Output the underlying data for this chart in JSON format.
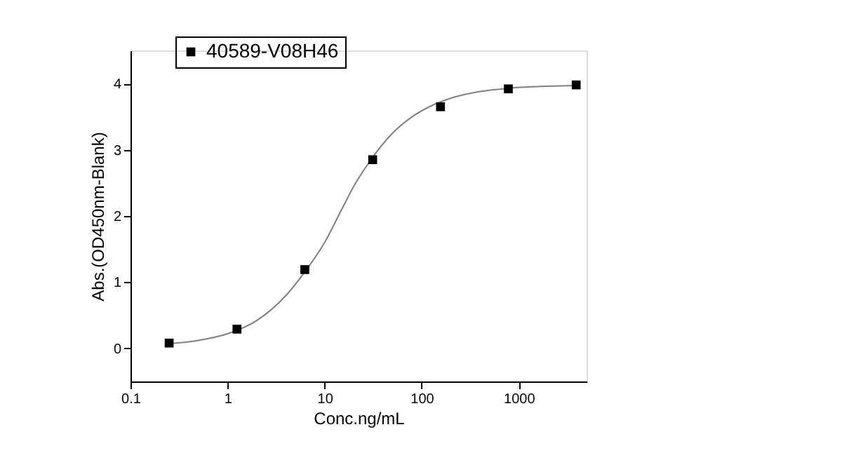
{
  "chart_data": {
    "type": "scatter",
    "xlabel": "Conc.ng/mL",
    "ylabel": "Abs.(OD450nm-Blank)",
    "log": "x",
    "grid": false,
    "legend": "top left",
    "xlim": [
      0.1,
      5000
    ],
    "xticks": [
      0.1,
      1,
      10,
      100,
      1000
    ],
    "ylim": [
      -0.5,
      4.5
    ],
    "yticks": [
      0,
      1,
      2,
      3,
      4
    ],
    "series": [
      {
        "name": "40589-V08H46",
        "color": "#000000",
        "marker": "square",
        "x": [
          0.25,
          1.25,
          6.25,
          31.25,
          156.25,
          781.25,
          3906.25
        ],
        "values": [
          0.08,
          0.29,
          1.19,
          2.85,
          3.65,
          3.92,
          3.98
        ]
      },
      {
        "color": "#808080",
        "type": "line",
        "marker": "none",
        "line_style": "solid",
        "x": [
          0.25,
          0.5,
          1,
          2,
          4,
          6,
          10,
          15,
          20,
          30,
          50,
          80,
          120,
          200,
          400,
          800,
          2000,
          3906.25
        ],
        "values": [
          0.07,
          0.12,
          0.22,
          0.42,
          0.8,
          1.12,
          1.6,
          2.1,
          2.45,
          2.85,
          3.25,
          3.5,
          3.65,
          3.78,
          3.88,
          3.93,
          3.96,
          3.97
        ]
      }
    ]
  }
}
